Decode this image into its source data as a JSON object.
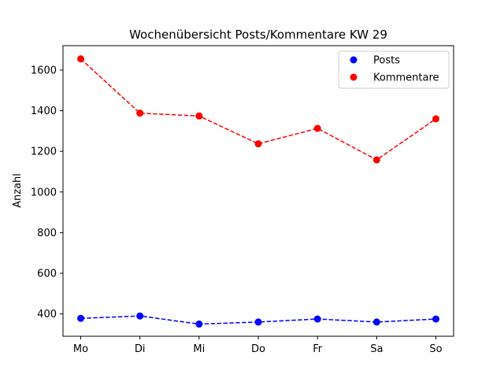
{
  "chart_data": {
    "type": "line",
    "title": "Wochenübersicht Posts/Kommentare KW 29",
    "xlabel": "",
    "ylabel": "Anzahl",
    "categories": [
      "Mo",
      "Di",
      "Mi",
      "Do",
      "Fr",
      "Sa",
      "So"
    ],
    "ylim": [
      290,
      1720
    ],
    "yticks": [
      400,
      600,
      800,
      1000,
      1200,
      1400,
      1600
    ],
    "grid": false,
    "legend_position": "top-right",
    "series": [
      {
        "name": "Posts",
        "color": "#0000ff",
        "line_style": "dashed",
        "marker": "circle",
        "values": [
          378,
          390,
          350,
          360,
          375,
          360,
          375
        ]
      },
      {
        "name": "Kommentare",
        "color": "#ff0000",
        "line_style": "dashed",
        "marker": "circle",
        "values": [
          1655,
          1388,
          1374,
          1237,
          1313,
          1158,
          1360
        ]
      }
    ]
  }
}
